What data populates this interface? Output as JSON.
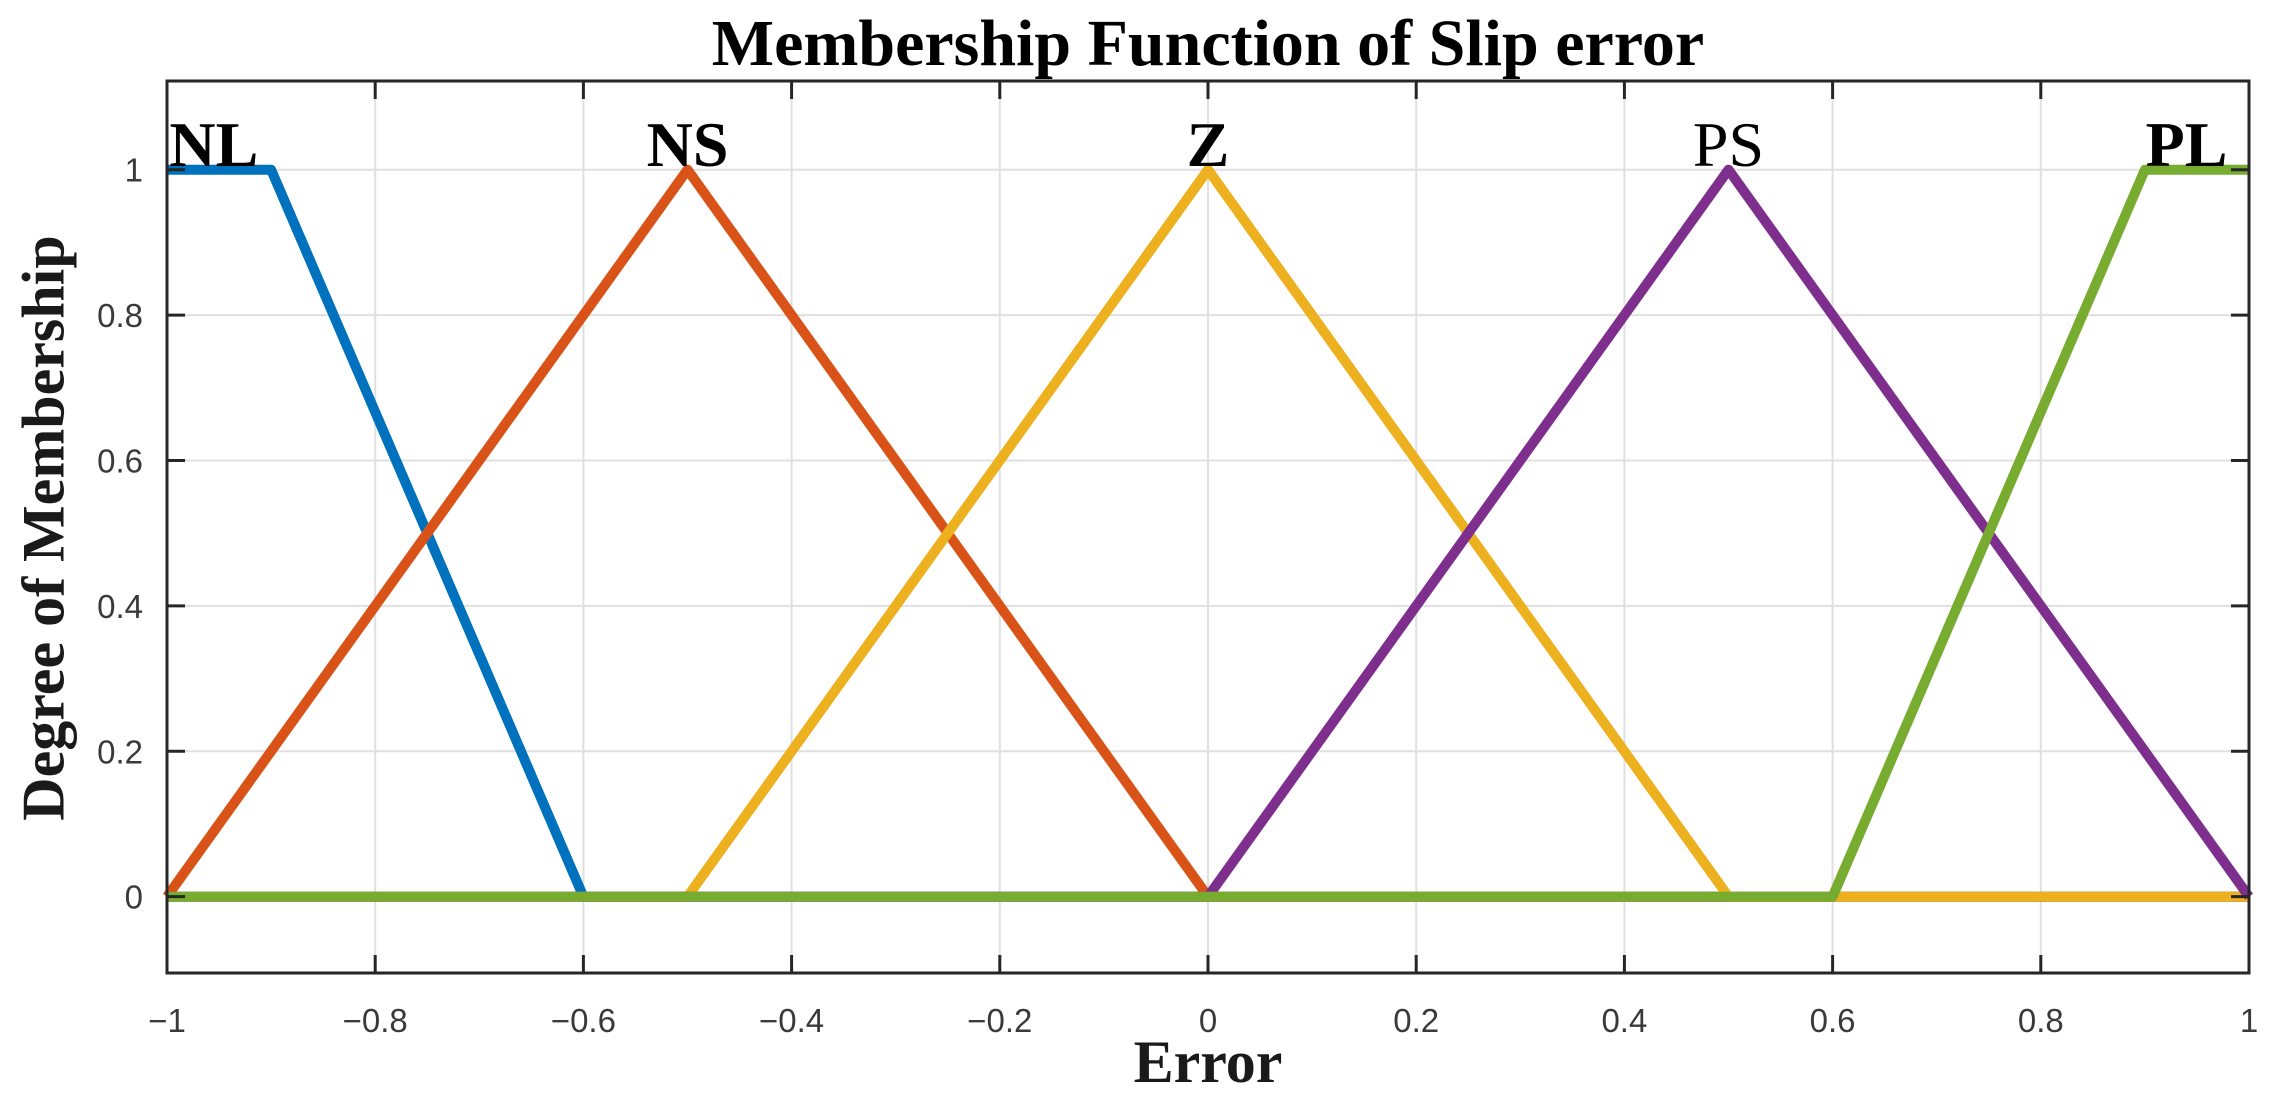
{
  "chart_data": {
    "type": "line",
    "title": "Membership Function of Slip error",
    "xlabel": "Error",
    "ylabel": "Degree of Membership",
    "xlim": [
      -1,
      1
    ],
    "ylim": [
      -0.105,
      1.122
    ],
    "grid": true,
    "legend_position": "none",
    "background_color": "#ffffff",
    "axis_color": "#262626",
    "grid_color": "#e0e0e0",
    "tick_label_color": "#3a3a3a",
    "xticks": [
      {
        "v": -1,
        "label": "−1"
      },
      {
        "v": -0.8,
        "label": "−0.8"
      },
      {
        "v": -0.6,
        "label": "−0.6"
      },
      {
        "v": -0.4,
        "label": "−0.4"
      },
      {
        "v": -0.2,
        "label": "−0.2"
      },
      {
        "v": 0,
        "label": "0"
      },
      {
        "v": 0.2,
        "label": "0.2"
      },
      {
        "v": 0.4,
        "label": "0.4"
      },
      {
        "v": 0.6,
        "label": "0.6"
      },
      {
        "v": 0.8,
        "label": "0.8"
      },
      {
        "v": 1,
        "label": "1"
      }
    ],
    "yticks": [
      {
        "v": 0,
        "label": "0"
      },
      {
        "v": 0.2,
        "label": "0.2"
      },
      {
        "v": 0.4,
        "label": "0.4"
      },
      {
        "v": 0.6,
        "label": "0.6"
      },
      {
        "v": 0.8,
        "label": "0.8"
      },
      {
        "v": 1,
        "label": "1"
      }
    ],
    "series": [
      {
        "name": "NL",
        "color": "#0072BD",
        "shape": "trapezoid",
        "points": [
          [
            -1,
            1
          ],
          [
            -0.9,
            1
          ],
          [
            -0.6,
            0
          ],
          [
            1,
            0
          ]
        ]
      },
      {
        "name": "NS",
        "color": "#D95319",
        "shape": "triangle",
        "points": [
          [
            -1,
            0
          ],
          [
            -0.5,
            1
          ],
          [
            0,
            0
          ],
          [
            1,
            0
          ]
        ]
      },
      {
        "name": "Z",
        "color": "#EDB120",
        "shape": "triangle",
        "points": [
          [
            -1,
            0
          ],
          [
            -0.5,
            0
          ],
          [
            0,
            1
          ],
          [
            0.5,
            0
          ],
          [
            1,
            0
          ]
        ]
      },
      {
        "name": "PS",
        "color": "#7E2F8E",
        "shape": "triangle",
        "points": [
          [
            -1,
            0
          ],
          [
            0,
            0
          ],
          [
            0.5,
            1
          ],
          [
            1,
            0
          ]
        ]
      },
      {
        "name": "PL",
        "color": "#77AC30",
        "shape": "trapezoid",
        "points": [
          [
            -1,
            0
          ],
          [
            0.6,
            0
          ],
          [
            0.9,
            1
          ],
          [
            1,
            1
          ]
        ]
      }
    ],
    "set_labels": [
      {
        "text": "NL",
        "x": -0.955,
        "bold": true
      },
      {
        "text": "NS",
        "x": -0.5,
        "bold": true
      },
      {
        "text": "Z",
        "x": 0,
        "bold": true
      },
      {
        "text": "PS",
        "x": 0.5,
        "bold": false
      },
      {
        "text": "PL",
        "x": 0.94,
        "bold": true
      }
    ]
  }
}
